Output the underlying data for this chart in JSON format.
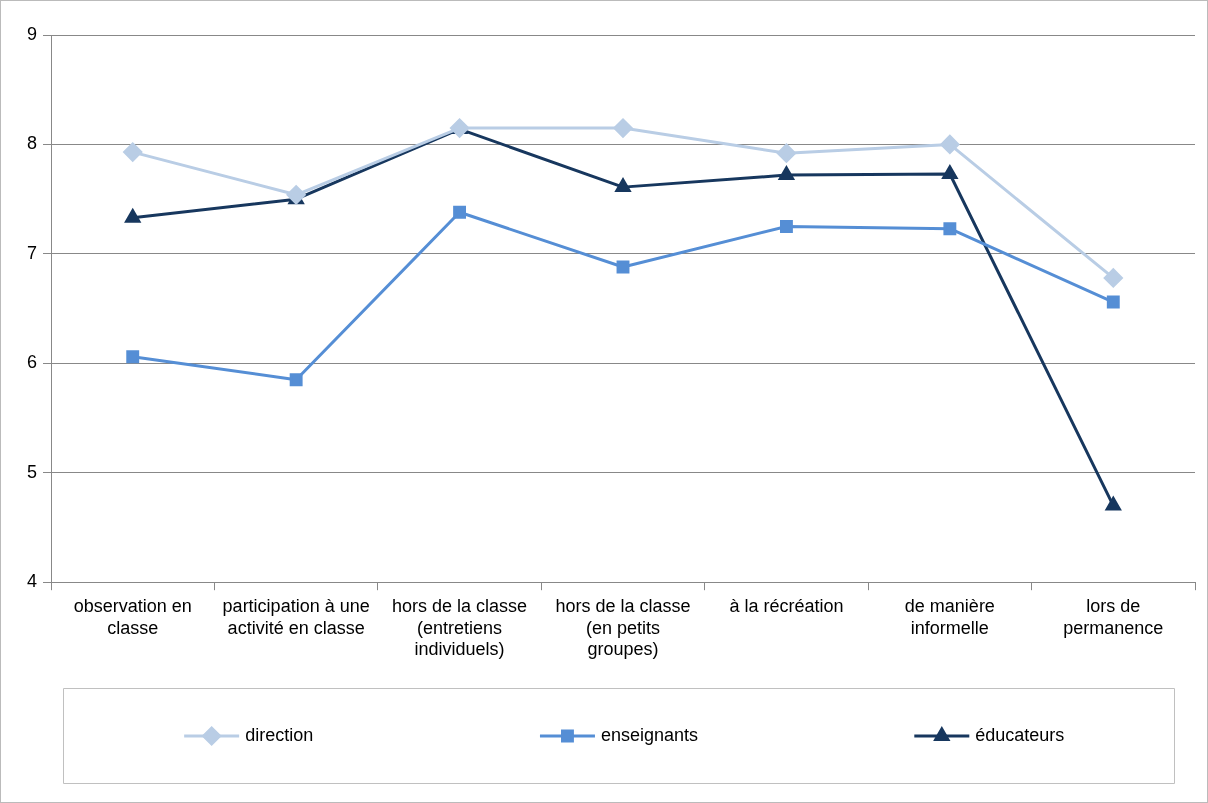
{
  "chart_data": {
    "type": "line",
    "categories": [
      "observation en classe",
      "participation à une activité en classe",
      "hors de la classe (entretiens individuels)",
      "hors de la classe (en petits groupes)",
      "à la récréation",
      "de manière informelle",
      "lors de permanence"
    ],
    "series": [
      {
        "name": "direction",
        "color": "#b9cde5",
        "marker": "diamond",
        "values": [
          7.93,
          7.54,
          8.15,
          8.15,
          7.92,
          8.0,
          6.78
        ]
      },
      {
        "name": "enseignants",
        "color": "#558ed5",
        "marker": "square",
        "values": [
          6.06,
          5.85,
          7.38,
          6.88,
          7.25,
          7.23,
          6.56
        ]
      },
      {
        "name": "éducateurs",
        "color": "#17375e",
        "marker": "triangle",
        "values": [
          7.33,
          7.5,
          8.14,
          7.61,
          7.72,
          7.73,
          4.7
        ]
      }
    ],
    "ylim": [
      4,
      9
    ],
    "yticks": [
      4,
      5,
      6,
      7,
      8,
      9
    ],
    "grid": "y",
    "legend": "bottom",
    "line_style": "solid"
  }
}
